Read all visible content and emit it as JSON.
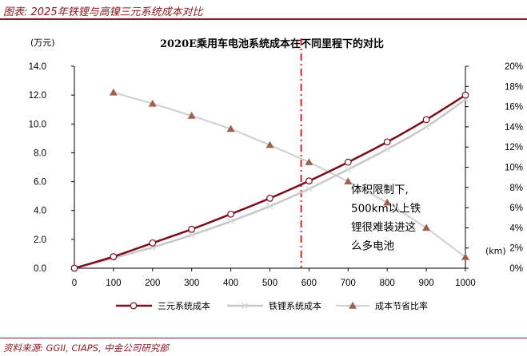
{
  "header": {
    "title": "图表: 2025年铁锂与高镍三元系统成本对比"
  },
  "source": "资料来源: GGII, CIAPS, 中金公司研究部",
  "colors": {
    "ternary": "#7b0d1e",
    "lfp": "#c8c8c8",
    "saving": "#a0604e",
    "divider": "#e02020",
    "brand": "#8b1a22"
  },
  "chart_data": {
    "type": "line",
    "title": "2020E乘用车电池系统成本在不同里程下的对比",
    "y_unit": "(万元)",
    "x_unit": "(km)",
    "x": [
      0,
      100,
      200,
      300,
      400,
      500,
      600,
      700,
      800,
      900,
      1000
    ],
    "ylim": [
      0,
      14
    ],
    "yticks": [
      0,
      2,
      4,
      6,
      8,
      10,
      12,
      14
    ],
    "ytick_labels": [
      "0.0",
      "2.0",
      "4.0",
      "6.0",
      "8.0",
      "10.0",
      "12.0",
      "14.0"
    ],
    "y2lim": [
      0,
      20
    ],
    "y2ticks": [
      0,
      2,
      4,
      6,
      8,
      10,
      12,
      14,
      16,
      18,
      20
    ],
    "y2tick_labels": [
      "0%",
      "2%",
      "4%",
      "6%",
      "8%",
      "10%",
      "12%",
      "14%",
      "16%",
      "18%",
      "20%"
    ],
    "grid": false,
    "legend_position": "bottom",
    "series": [
      {
        "name": "三元系统成本",
        "axis": "left",
        "marker": "circle",
        "values": [
          0,
          0.8,
          1.75,
          2.7,
          3.75,
          4.85,
          6.05,
          7.35,
          8.75,
          10.3,
          12.0
        ]
      },
      {
        "name": "铁锂系统成本",
        "axis": "left",
        "marker": "x",
        "values": [
          0,
          0.7,
          1.45,
          2.3,
          3.25,
          4.3,
          5.5,
          6.85,
          8.25,
          9.8,
          11.7
        ]
      },
      {
        "name": "成本节省比率",
        "axis": "right",
        "marker": "triangle",
        "x": [
          100,
          200,
          300,
          400,
          500,
          600,
          700,
          800,
          900,
          1000
        ],
        "values": [
          17.4,
          16.3,
          15.1,
          13.8,
          12.2,
          10.5,
          8.6,
          6.5,
          4.0,
          1.1
        ]
      }
    ],
    "divider_x": 580,
    "annotation": [
      "体积限制下,",
      "500km以上铁",
      "锂很难装进这",
      "么多电池"
    ]
  }
}
